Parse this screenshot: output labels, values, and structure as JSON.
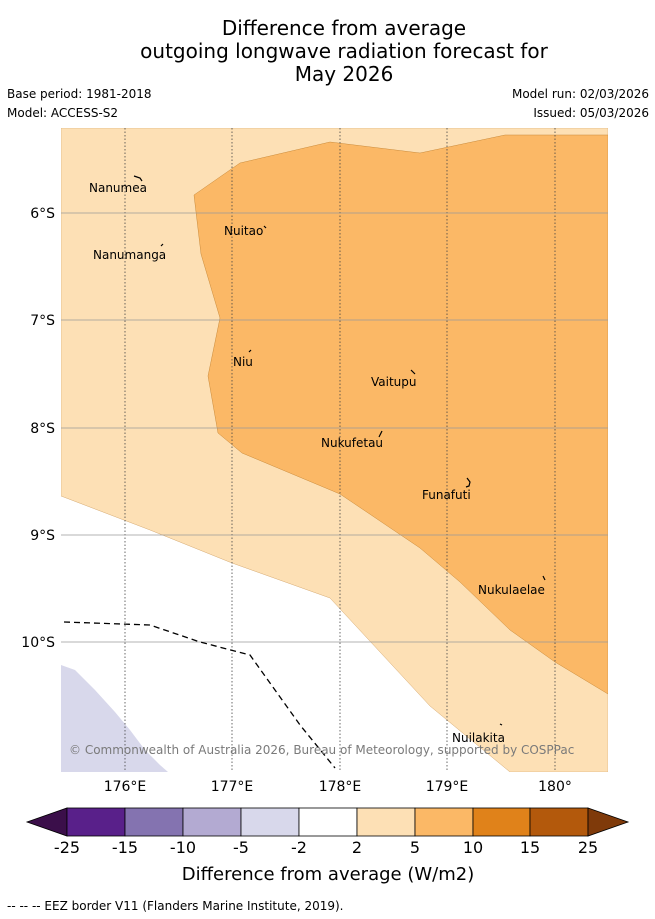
{
  "header": {
    "title_lines": [
      "Difference from average",
      "outgoing longwave radiation forecast for",
      "May 2026"
    ],
    "base_period": "Base period: 1981-2018",
    "model": "Model: ACCESS-S2",
    "model_run": "Model run: 02/03/2026",
    "issued": "Issued: 05/03/2026"
  },
  "map": {
    "longitude_ticks": [
      "176°E",
      "177°E",
      "178°E",
      "179°E",
      "180°"
    ],
    "latitude_ticks": [
      "6°S",
      "7°S",
      "8°S",
      "9°S",
      "10°S"
    ],
    "islands": [
      {
        "name": "Nanumea"
      },
      {
        "name": "Nuitao"
      },
      {
        "name": "Nanumanga"
      },
      {
        "name": "Niu"
      },
      {
        "name": "Vaitupu"
      },
      {
        "name": "Nukufetau"
      },
      {
        "name": "Funafuti"
      },
      {
        "name": "Nukulaelae"
      },
      {
        "name": "Nuilakita"
      }
    ],
    "copyright": "© Commonwealth of Australia 2026, Bureau of Meteorology, supported by COSPPac"
  },
  "colorbar": {
    "title": "Difference from average (W/m2)",
    "tick_labels": [
      "-25",
      "-15",
      "-10",
      "-5",
      "-2",
      "2",
      "5",
      "10",
      "15",
      "25"
    ],
    "colors": {
      "below_min": "#3b0f4a",
      "bins": [
        "#59208a",
        "#8473b0",
        "#b3aad2",
        "#d8d8eb",
        "#ffffff",
        "#fde0b5",
        "#fbb866",
        "#e0821a",
        "#b3590c"
      ],
      "above_max": "#7f3a0a"
    }
  },
  "legend_note": "--  --  -- EEZ border V11 (Flanders Marine Institute, 2019)."
}
